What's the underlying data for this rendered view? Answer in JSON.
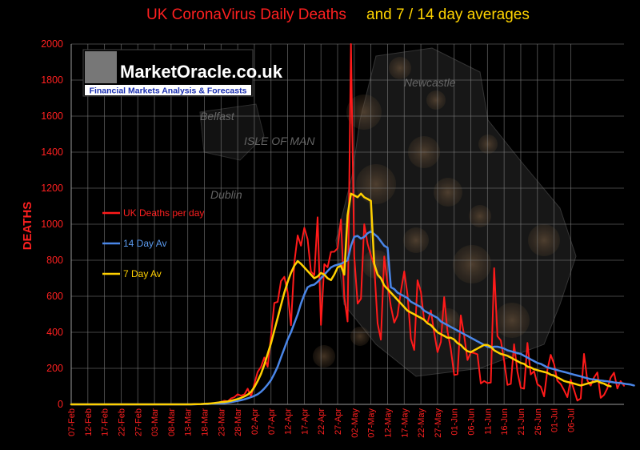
{
  "colors": {
    "background": "#000000",
    "deaths": "#ff1a1a",
    "avg14": "#4a86e8",
    "avg7": "#ffd000",
    "axis_text": "#ff2020",
    "grid": "#7a7a7a"
  },
  "title": {
    "part1": "UK CoronaVirus Daily Deaths",
    "part2": "and 7 / 14 day averages"
  },
  "logo": {
    "name": "MarketOracle.co.uk",
    "tagline": "Financial Markets Analysis & Forecasts"
  },
  "background_map": {
    "labels": [
      "Belfast",
      "ISLE OF MAN",
      "Dublin",
      "Newcastle"
    ]
  },
  "chart_data": {
    "type": "line",
    "ylabel": "DEATHS",
    "xlabel": "",
    "ylim": [
      0,
      2000
    ],
    "yticks": [
      0,
      200,
      400,
      600,
      800,
      1000,
      1200,
      1400,
      1600,
      1800,
      2000
    ],
    "x_start": "07-Feb",
    "x_end": "08-Jul",
    "xtick_labels": [
      "07-Feb",
      "12-Feb",
      "17-Feb",
      "22-Feb",
      "27-Feb",
      "03-Mar",
      "08-Mar",
      "13-Mar",
      "18-Mar",
      "23-Mar",
      "28-Mar",
      "02-Apr",
      "07-Apr",
      "12-Apr",
      "17-Apr",
      "22-Apr",
      "27-Apr",
      "02-May",
      "07-May",
      "12-May",
      "17-May",
      "22-May",
      "27-May",
      "01-Jun",
      "06-Jun",
      "11-Jun",
      "16-Jun",
      "21-Jun",
      "26-Jun",
      "01-Jul",
      "06-Jul"
    ],
    "grid": true,
    "legend": [
      {
        "label": "UK Deaths per day",
        "color": "#ff1a1a"
      },
      {
        "label": "14 Day Av",
        "color": "#4a86e8"
      },
      {
        "label": "7 Day Av",
        "color": "#ffd000"
      }
    ],
    "series": [
      {
        "name": "UK Deaths per day",
        "color": "#ff1a1a",
        "values": [
          0,
          0,
          0,
          0,
          0,
          0,
          0,
          0,
          0,
          0,
          0,
          0,
          0,
          0,
          0,
          0,
          0,
          0,
          0,
          0,
          0,
          0,
          0,
          0,
          0,
          0,
          0,
          0,
          0,
          0,
          0,
          0,
          0,
          0,
          0,
          0,
          0,
          1,
          1,
          2,
          2,
          3,
          6,
          7,
          10,
          14,
          20,
          16,
          33,
          40,
          56,
          48,
          55,
          87,
          43,
          113,
          180,
          209,
          260,
          209,
          381,
          563,
          569,
          684,
          708,
          621,
          439,
          786,
          938,
          881,
          980,
          917,
          737,
          717,
          1038,
          441,
          778,
          761,
          846,
          847,
          866,
          1026,
          597,
          460,
          2000,
          823,
          559,
          586,
          1000,
          891,
          828,
          770,
          450,
          359,
          821,
          668,
          543,
          454,
          494,
          628,
          738,
          609,
          364,
          302,
          689,
          625,
          466,
          452,
          522,
          399,
          290,
          347,
          595,
          404,
          308,
          163,
          167,
          494,
          382,
          246,
          289,
          285,
          278,
          116,
          130,
          118,
          121,
          756,
          378,
          355,
          244,
          108,
          114,
          334,
          181,
          92,
          87,
          341,
          166,
          184,
          111,
          98,
          44,
          193,
          275,
          224,
          131,
          113,
          78,
          40,
          137,
          79,
          21,
          33,
          280,
          132,
          104,
          149,
          177,
          36,
          52,
          89,
          148,
          176,
          88,
          129,
          103
        ]
      },
      {
        "name": "14 Day Av",
        "color": "#4a86e8",
        "values": [
          0,
          0,
          0,
          0,
          0,
          0,
          0,
          0,
          0,
          0,
          0,
          0,
          0,
          0,
          0,
          0,
          0,
          0,
          0,
          0,
          0,
          0,
          0,
          0,
          0,
          0,
          0,
          0,
          0,
          0,
          0,
          0,
          0,
          0,
          0,
          0,
          0,
          0,
          1,
          1,
          2,
          2,
          3,
          4,
          5,
          6,
          8,
          10,
          13,
          16,
          19,
          23,
          28,
          34,
          40,
          47,
          56,
          70,
          88,
          110,
          135,
          170,
          210,
          260,
          310,
          360,
          400,
          450,
          500,
          560,
          610,
          650,
          660,
          665,
          680,
          700,
          720,
          740,
          760,
          770,
          775,
          780,
          790,
          800,
          880,
          930,
          935,
          920,
          930,
          950,
          960,
          945,
          930,
          905,
          880,
          870,
          650,
          640,
          620,
          610,
          600,
          590,
          570,
          560,
          550,
          540,
          520,
          510,
          500,
          490,
          480,
          460,
          450,
          440,
          430,
          420,
          410,
          400,
          390,
          380,
          370,
          360,
          350,
          340,
          330,
          320,
          315,
          320,
          320,
          315,
          310,
          300,
          295,
          290,
          285,
          280,
          270,
          260,
          250,
          240,
          230,
          225,
          215,
          205,
          200,
          195,
          190,
          185,
          180,
          175,
          170,
          165,
          160,
          155,
          150,
          145,
          140,
          138,
          135,
          132,
          130,
          128,
          125,
          122,
          120,
          118,
          115,
          112,
          110,
          105
        ]
      },
      {
        "name": "7 Day Av",
        "color": "#ffd000",
        "values": [
          0,
          0,
          0,
          0,
          0,
          0,
          0,
          0,
          0,
          0,
          0,
          0,
          0,
          0,
          0,
          0,
          0,
          0,
          0,
          0,
          0,
          0,
          0,
          0,
          0,
          0,
          0,
          0,
          0,
          0,
          0,
          0,
          0,
          0,
          0,
          0,
          0,
          1,
          1,
          2,
          3,
          4,
          5,
          7,
          10,
          12,
          14,
          16,
          20,
          25,
          30,
          36,
          44,
          54,
          70,
          95,
          130,
          170,
          220,
          280,
          340,
          410,
          480,
          550,
          620,
          680,
          730,
          770,
          795,
          780,
          760,
          740,
          720,
          700,
          710,
          730,
          720,
          700,
          690,
          720,
          760,
          770,
          720,
          1050,
          1170,
          1160,
          1150,
          1170,
          1150,
          1140,
          1130,
          780,
          720,
          700,
          660,
          640,
          620,
          600,
          580,
          560,
          540,
          520,
          510,
          500,
          490,
          480,
          470,
          450,
          440,
          420,
          400,
          390,
          380,
          370,
          370,
          360,
          340,
          330,
          310,
          295,
          290,
          300,
          310,
          320,
          330,
          330,
          320,
          300,
          290,
          280,
          275,
          270,
          260,
          250,
          240,
          230,
          225,
          210,
          205,
          195,
          190,
          185,
          180,
          175,
          165,
          160,
          150,
          140,
          130,
          125,
          120,
          115,
          110,
          105,
          110,
          115,
          120,
          125,
          130,
          120,
          115,
          105,
          100
        ]
      }
    ]
  }
}
